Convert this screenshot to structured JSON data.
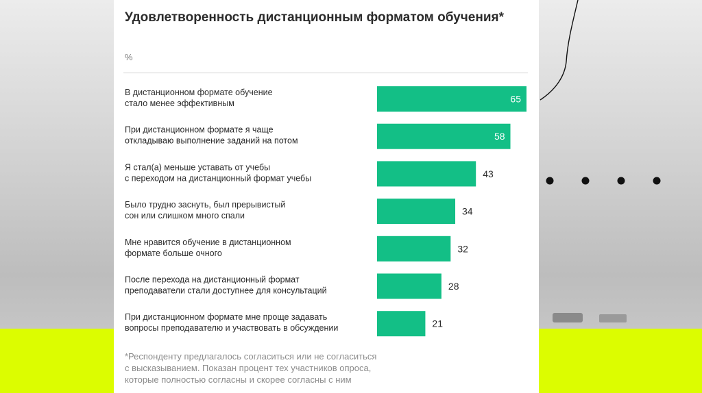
{
  "colors": {
    "bar": "#13bf86",
    "background_band": "#dcfd00",
    "text": "#2b2b2b"
  },
  "header": {
    "title": "Удовлетворенность дистанционным форматом обучения*",
    "unit": "%"
  },
  "chart_data": {
    "type": "bar",
    "orientation": "horizontal",
    "title": "Удовлетворенность дистанционным форматом обучения*",
    "ylabel": "%",
    "xlim": [
      0,
      65
    ],
    "grid": false,
    "categories": [
      [
        "В дистанционном формате обучение",
        "стало менее эффективным"
      ],
      [
        "При дистанционном формате я чаще",
        "откладываю выполнение заданий на потом"
      ],
      [
        "Я стал(а) меньше уставать от учебы",
        "с переходом на дистанционный формат учебы"
      ],
      [
        "Было трудно заснуть, был прерывистый",
        "сон или слишком много спали"
      ],
      [
        "Мне нравится обучение в дистанционном",
        "формате больше очного"
      ],
      [
        "После перехода на дистанционный формат",
        "преподаватели стали доступнее для консультаций"
      ],
      [
        "При дистанционном формате мне проще задавать",
        "вопросы преподавателю и участвовать в обсуждении"
      ]
    ],
    "values": [
      65,
      58,
      43,
      34,
      32,
      28,
      21
    ],
    "value_labels_inside": [
      true,
      true,
      false,
      false,
      false,
      false,
      false
    ]
  },
  "footnote": [
    "*Респонденту предлагалось согласиться или не согласиться",
    "с высказыванием. Показан процент тех участников опроса,",
    "которые полностью согласны и скорее согласны с ним"
  ]
}
